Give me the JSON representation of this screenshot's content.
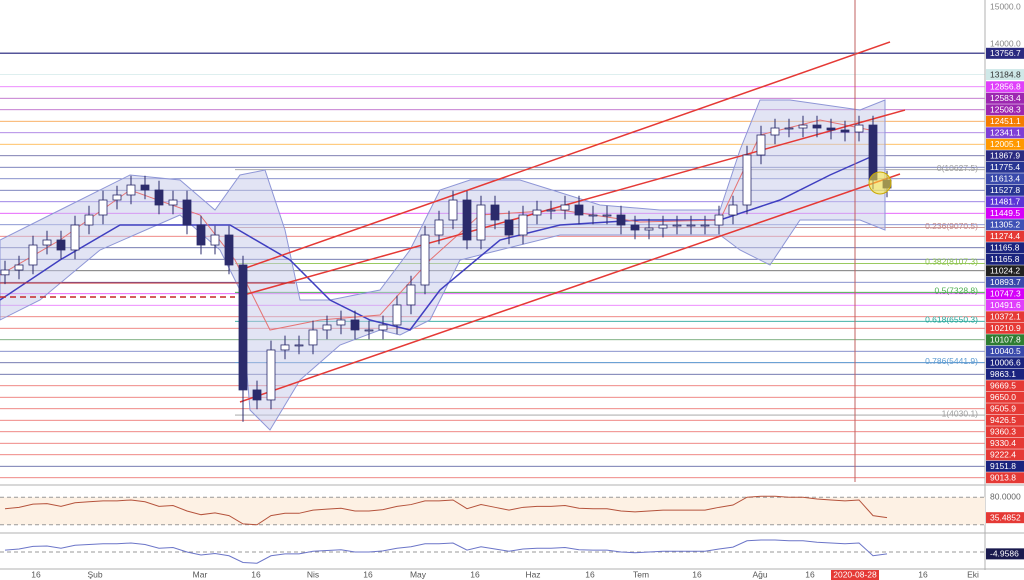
{
  "chart_data": {
    "type": "candlestick",
    "ylim": [
      2230,
      15190
    ],
    "yticks": [
      {
        "value": 15000,
        "label": "15000.0"
      },
      {
        "value": 14000,
        "label": "14000.0"
      }
    ],
    "up_color": "#ffffff",
    "down_color": "#2b2b6b",
    "open": [
      7800,
      7930,
      8065,
      8602,
      8737,
      8468,
      9140,
      9409,
      9812,
      9947,
      10215,
      10081,
      9678,
      9812,
      9140,
      8602,
      8871,
      8065,
      4705,
      4436,
      5780,
      5915,
      5915,
      6318,
      6452,
      6587,
      6318,
      6318,
      6452,
      6990,
      7527,
      8871,
      9275,
      9812,
      8737,
      9678,
      9275,
      8871,
      9409,
      9543,
      9543,
      9678,
      9409,
      9409,
      9409,
      9140,
      9006,
      9059,
      9140,
      9140,
      9140,
      9140,
      9409,
      9678,
      11022,
      11560,
      11748,
      11748,
      11828,
      11748,
      11694,
      11640,
      11828,
      10350
    ],
    "high": [
      8180,
      8315,
      8852,
      8987,
      8987,
      9390,
      9659,
      10062,
      10197,
      10465,
      10465,
      10331,
      10062,
      10062,
      9390,
      9121,
      9121,
      8315,
      4955,
      6030,
      6165,
      6165,
      6568,
      6702,
      6837,
      6837,
      6568,
      6702,
      7240,
      7777,
      9121,
      9525,
      10062,
      10062,
      9928,
      9928,
      9525,
      9659,
      9793,
      9793,
      9928,
      9928,
      9659,
      9659,
      9659,
      9390,
      9309,
      9390,
      9390,
      9390,
      9390,
      9659,
      9928,
      11272,
      11810,
      11998,
      11998,
      12078,
      12078,
      11998,
      11944,
      12078,
      12078,
      10600
    ],
    "low": [
      7550,
      7680,
      7815,
      8352,
      8218,
      8218,
      8890,
      9159,
      9562,
      9697,
      9831,
      9428,
      9428,
      8890,
      8352,
      8352,
      7815,
      3850,
      4186,
      4186,
      5530,
      5665,
      5665,
      6068,
      6202,
      6068,
      6068,
      6068,
      6202,
      6740,
      7277,
      8621,
      9025,
      8487,
      8487,
      9025,
      8621,
      8621,
      9159,
      9293,
      9293,
      9159,
      9159,
      9159,
      8890,
      8756,
      8756,
      8809,
      8890,
      8890,
      8890,
      8890,
      9159,
      9428,
      10772,
      11310,
      11498,
      11498,
      11498,
      11444,
      11390,
      11390,
      10100,
      9885
    ],
    "close": [
      7930,
      8065,
      8602,
      8737,
      8468,
      9140,
      9409,
      9812,
      9947,
      10215,
      10081,
      9678,
      9812,
      9140,
      8602,
      8871,
      8065,
      4705,
      4436,
      5780,
      5915,
      5915,
      6318,
      6452,
      6587,
      6318,
      6318,
      6452,
      6990,
      7527,
      8871,
      9275,
      9812,
      8737,
      9678,
      9275,
      8871,
      9409,
      9543,
      9543,
      9678,
      9409,
      9409,
      9409,
      9140,
      9006,
      9059,
      9140,
      9140,
      9140,
      9140,
      9409,
      9678,
      11022,
      11560,
      11748,
      11748,
      11828,
      11748,
      11694,
      11640,
      11828,
      10350,
      10135
    ],
    "price_labels": [
      {
        "label": "13756.7",
        "color": "#2a2a80"
      },
      {
        "label": "13184.8",
        "color": "#cfe8e8"
      },
      {
        "label": "12856.8",
        "color": "#e040fb"
      },
      {
        "label": "12583.4",
        "color": "#9c27b0"
      },
      {
        "label": "12508.3",
        "color": "#9c27b0"
      },
      {
        "label": "12451.1",
        "color": "#f57c00"
      },
      {
        "label": "12341.1",
        "color": "#7e3fd6"
      },
      {
        "label": "12005.1",
        "color": "#ff9800"
      },
      {
        "label": "11867.9",
        "color": "#2a2a80"
      },
      {
        "label": "11775.4",
        "color": "#283593"
      },
      {
        "label": "11613.4",
        "color": "#3949ab"
      },
      {
        "label": "11527.8",
        "color": "#283593"
      },
      {
        "label": "11481.7",
        "color": "#5c35d6"
      },
      {
        "label": "11449.5",
        "color": "#d500f9"
      },
      {
        "label": "11305.2",
        "color": "#3f51b5"
      },
      {
        "label": "11274.4",
        "color": "#e53935"
      },
      {
        "label": "11165.8",
        "color": "#1a237e"
      },
      {
        "label": "11165.8",
        "color": "#1a237e"
      },
      {
        "label": "11024.2",
        "color": "#212121"
      },
      {
        "label": "10893.7",
        "color": "#3949ab"
      },
      {
        "label": "10747.3",
        "color": "#d500f9"
      },
      {
        "label": "10491.6",
        "color": "#e040fb"
      },
      {
        "label": "10372.1",
        "color": "#e53935"
      },
      {
        "label": "10210.9",
        "color": "#e53935"
      },
      {
        "label": "10107.8",
        "color": "#2e7d32"
      },
      {
        "label": "10040.5",
        "color": "#3949ab"
      },
      {
        "label": "10006.6",
        "color": "#1a237e"
      },
      {
        "label": "9863.1",
        "color": "#1a237e"
      },
      {
        "label": "9669.5",
        "color": "#e53935"
      },
      {
        "label": "9650.0",
        "color": "#e53935"
      },
      {
        "label": "9505.9",
        "color": "#e53935"
      },
      {
        "label": "9426.5",
        "color": "#e53935"
      },
      {
        "label": "9360.3",
        "color": "#e53935"
      },
      {
        "label": "9330.4",
        "color": "#e53935"
      },
      {
        "label": "9222.4",
        "color": "#e53935"
      },
      {
        "label": "9151.8",
        "color": "#1a237e"
      },
      {
        "label": "9013.8",
        "color": "#e53935"
      }
    ],
    "fib_levels": [
      {
        "value": 10627.5,
        "label": "0(10627.5)",
        "color": "#9e9e9e"
      },
      {
        "value": 9070.5,
        "label": "0.236(9070.5)",
        "color": "#c48a8a"
      },
      {
        "value": 8107.3,
        "label": "0.382(8107.3)",
        "color": "#8bc34a"
      },
      {
        "value": 7328.8,
        "label": "0.5(7328.8)",
        "color": "#4caf50"
      },
      {
        "value": 6550.3,
        "label": "0.618(6550.3)",
        "color": "#26a69a"
      },
      {
        "value": 5441.9,
        "label": "0.786(5441.9)",
        "color": "#5c9bd1"
      },
      {
        "value": 4030.1,
        "label": "1(4030.1)",
        "color": "#9e9e9e"
      }
    ],
    "xticks": [
      "16",
      "Şub",
      "Mar",
      "16",
      "Nis",
      "16",
      "May",
      "16",
      "Haz",
      "16",
      "Tem",
      "16",
      "Ağu",
      "16",
      "2020-08-28",
      "16",
      "Eki"
    ],
    "rsi": {
      "ylim": [
        0,
        100
      ],
      "levels": [
        {
          "value": 80,
          "label": "80.0000"
        },
        20
      ],
      "color": "#b5533c",
      "values": [
        55,
        58,
        65,
        66,
        60,
        68,
        70,
        72,
        72,
        74,
        70,
        60,
        62,
        50,
        42,
        46,
        40,
        22,
        20,
        40,
        45,
        45,
        52,
        54,
        56,
        50,
        50,
        53,
        60,
        64,
        72,
        72,
        74,
        55,
        64,
        58,
        52,
        58,
        60,
        60,
        62,
        56,
        55,
        55,
        50,
        48,
        50,
        52,
        52,
        52,
        52,
        58,
        63,
        80,
        82,
        82,
        80,
        80,
        76,
        74,
        72,
        74,
        40,
        35.4852
      ],
      "last_label": "35.4852"
    },
    "oscillator": {
      "ylim": [
        -40,
        40
      ],
      "color": "#6b75c8",
      "values": [
        5,
        8,
        15,
        16,
        10,
        18,
        20,
        22,
        22,
        24,
        20,
        10,
        12,
        0,
        -8,
        -4,
        -10,
        -28,
        -30,
        -10,
        -5,
        -5,
        2,
        4,
        6,
        0,
        0,
        3,
        10,
        14,
        22,
        22,
        24,
        5,
        14,
        8,
        2,
        8,
        10,
        10,
        12,
        6,
        5,
        5,
        0,
        -2,
        0,
        2,
        2,
        2,
        2,
        8,
        13,
        30,
        32,
        32,
        30,
        30,
        26,
        24,
        22,
        24,
        -10,
        -4.9586
      ],
      "last_label": "-4.9586"
    }
  }
}
